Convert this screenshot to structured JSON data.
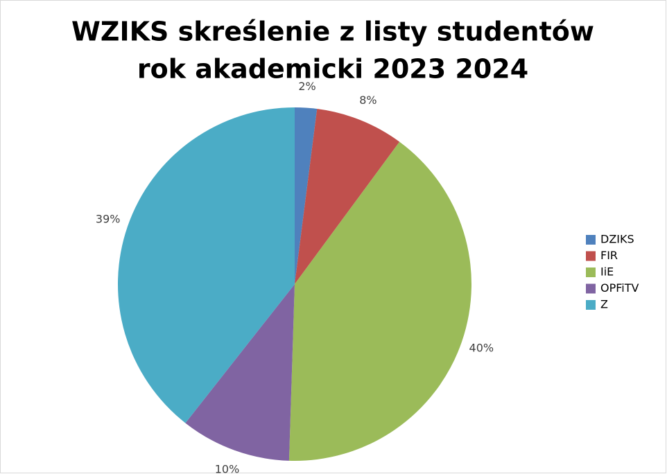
{
  "chart_data": {
    "type": "pie",
    "title": [
      "WZIKS skreślenie z listy studentów",
      "rok akademicki 2023 2024"
    ],
    "categories": [
      "DZIKS",
      "FIR",
      "IiE",
      "OPFiTV",
      "Z"
    ],
    "values": [
      2,
      8,
      40,
      10,
      39
    ],
    "value_labels": [
      "2%",
      "8%",
      "40%",
      "10%",
      "39%"
    ],
    "colors": [
      "#4f81bd",
      "#c0504d",
      "#9bbb59",
      "#8064a2",
      "#4bacc6"
    ],
    "legend": "right"
  }
}
